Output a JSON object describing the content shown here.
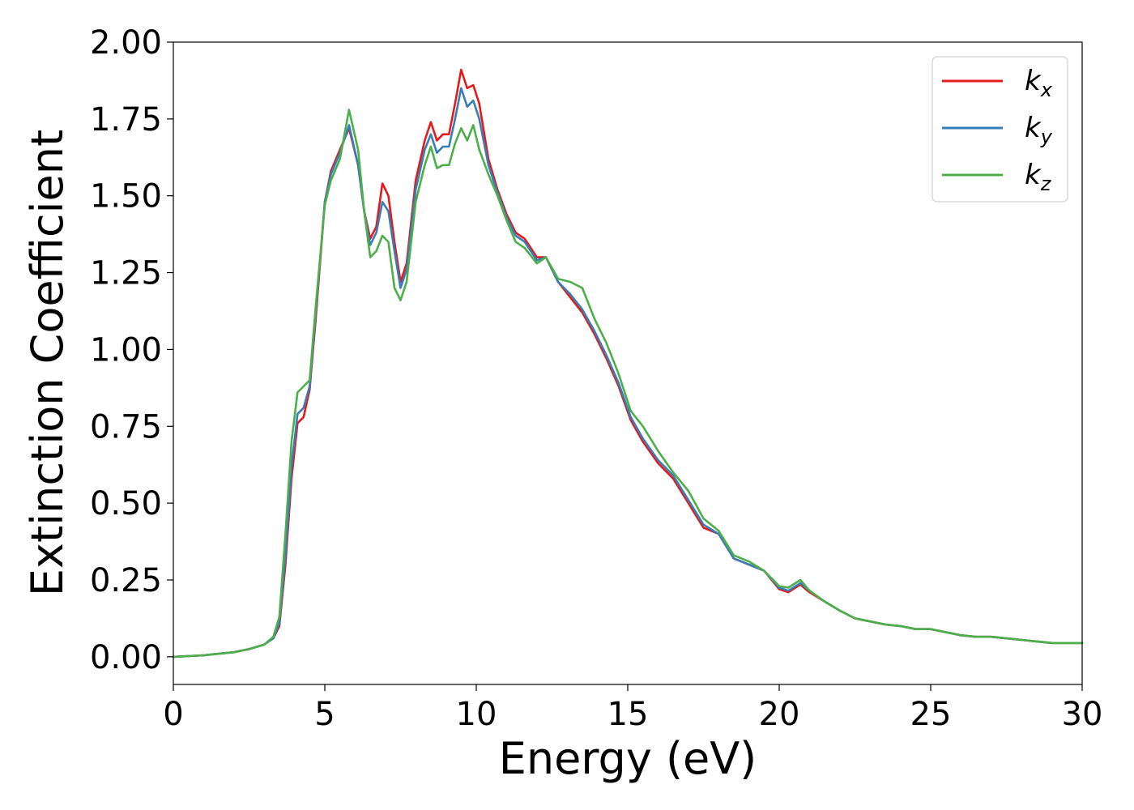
{
  "chart_data": {
    "type": "line",
    "title": "",
    "xlabel": "Energy (eV)",
    "ylabel": "Extinction Coefficient",
    "xlim": [
      0,
      30
    ],
    "ylim": [
      -0.09,
      2.0
    ],
    "xticks": [
      0,
      5,
      10,
      15,
      20,
      25,
      30
    ],
    "xtick_labels": [
      "0",
      "5",
      "10",
      "15",
      "20",
      "25",
      "30"
    ],
    "yticks": [
      0.0,
      0.25,
      0.5,
      0.75,
      1.0,
      1.25,
      1.5,
      1.75,
      2.0
    ],
    "ytick_labels": [
      "0.00",
      "0.25",
      "0.50",
      "0.75",
      "1.00",
      "1.25",
      "1.50",
      "1.75",
      "2.00"
    ],
    "grid": false,
    "legend_position": "top-right",
    "series": [
      {
        "name": "k",
        "subscript": "x",
        "color": "#e41a1c",
        "x": [
          0,
          1,
          2,
          2.5,
          3,
          3.3,
          3.5,
          3.7,
          3.9,
          4.1,
          4.3,
          4.5,
          4.7,
          5.0,
          5.2,
          5.5,
          5.8,
          6.1,
          6.3,
          6.5,
          6.7,
          6.9,
          7.1,
          7.3,
          7.5,
          7.7,
          8.0,
          8.3,
          8.5,
          8.7,
          8.9,
          9.1,
          9.3,
          9.5,
          9.7,
          9.9,
          10.1,
          10.4,
          10.7,
          11.0,
          11.3,
          11.6,
          12.0,
          12.3,
          12.7,
          13.1,
          13.5,
          13.9,
          14.3,
          14.7,
          15.1,
          15.5,
          16.0,
          16.5,
          17.0,
          17.5,
          18.0,
          18.5,
          19.0,
          19.5,
          20.0,
          20.3,
          20.7,
          21.0,
          21.5,
          22.0,
          22.5,
          23.0,
          23.5,
          24.0,
          24.5,
          25.0,
          25.5,
          26.0,
          26.5,
          27.0,
          27.5,
          28.0,
          28.5,
          29.0,
          29.5,
          30.0
        ],
        "y": [
          0.0,
          0.005,
          0.015,
          0.025,
          0.04,
          0.06,
          0.1,
          0.3,
          0.58,
          0.76,
          0.78,
          0.87,
          1.1,
          1.48,
          1.58,
          1.65,
          1.72,
          1.6,
          1.45,
          1.36,
          1.4,
          1.54,
          1.5,
          1.35,
          1.22,
          1.28,
          1.55,
          1.68,
          1.74,
          1.68,
          1.7,
          1.7,
          1.8,
          1.91,
          1.85,
          1.86,
          1.8,
          1.62,
          1.52,
          1.44,
          1.38,
          1.36,
          1.3,
          1.3,
          1.22,
          1.17,
          1.12,
          1.05,
          0.97,
          0.88,
          0.77,
          0.7,
          0.63,
          0.58,
          0.5,
          0.42,
          0.4,
          0.32,
          0.3,
          0.28,
          0.22,
          0.21,
          0.235,
          0.21,
          0.18,
          0.15,
          0.125,
          0.115,
          0.105,
          0.1,
          0.09,
          0.09,
          0.08,
          0.07,
          0.065,
          0.065,
          0.06,
          0.055,
          0.05,
          0.045,
          0.045,
          0.045
        ]
      },
      {
        "name": "k",
        "subscript": "y",
        "color": "#377eb8",
        "x": [
          0,
          1,
          2,
          2.5,
          3,
          3.3,
          3.5,
          3.7,
          3.9,
          4.1,
          4.3,
          4.5,
          4.7,
          5.0,
          5.2,
          5.5,
          5.8,
          6.1,
          6.3,
          6.5,
          6.7,
          6.9,
          7.1,
          7.3,
          7.5,
          7.7,
          8.0,
          8.3,
          8.5,
          8.7,
          8.9,
          9.1,
          9.3,
          9.5,
          9.7,
          9.9,
          10.1,
          10.4,
          10.7,
          11.0,
          11.3,
          11.6,
          12.0,
          12.3,
          12.7,
          13.1,
          13.5,
          13.9,
          14.3,
          14.7,
          15.1,
          15.5,
          16.0,
          16.5,
          17.0,
          17.5,
          18.0,
          18.5,
          19.0,
          19.5,
          20.0,
          20.3,
          20.7,
          21.0,
          21.5,
          22.0,
          22.5,
          23.0,
          23.5,
          24.0,
          24.5,
          25.0,
          25.5,
          26.0,
          26.5,
          27.0,
          27.5,
          28.0,
          28.5,
          29.0,
          29.5,
          30.0
        ],
        "y": [
          0.0,
          0.005,
          0.015,
          0.025,
          0.04,
          0.06,
          0.11,
          0.33,
          0.62,
          0.79,
          0.81,
          0.88,
          1.12,
          1.48,
          1.57,
          1.64,
          1.73,
          1.6,
          1.45,
          1.34,
          1.38,
          1.48,
          1.45,
          1.32,
          1.2,
          1.26,
          1.52,
          1.65,
          1.7,
          1.64,
          1.66,
          1.66,
          1.75,
          1.85,
          1.79,
          1.81,
          1.75,
          1.6,
          1.51,
          1.43,
          1.37,
          1.35,
          1.29,
          1.3,
          1.22,
          1.18,
          1.13,
          1.06,
          0.98,
          0.89,
          0.78,
          0.71,
          0.64,
          0.59,
          0.51,
          0.43,
          0.4,
          0.32,
          0.3,
          0.28,
          0.225,
          0.215,
          0.24,
          0.215,
          0.18,
          0.15,
          0.125,
          0.115,
          0.105,
          0.1,
          0.09,
          0.09,
          0.08,
          0.07,
          0.065,
          0.065,
          0.06,
          0.055,
          0.05,
          0.045,
          0.045,
          0.045
        ]
      },
      {
        "name": "k",
        "subscript": "z",
        "color": "#4daf4a",
        "x": [
          0,
          1,
          2,
          2.5,
          3,
          3.3,
          3.5,
          3.7,
          3.9,
          4.1,
          4.3,
          4.5,
          4.7,
          5.0,
          5.2,
          5.5,
          5.8,
          6.1,
          6.3,
          6.5,
          6.7,
          6.9,
          7.1,
          7.3,
          7.5,
          7.7,
          8.0,
          8.3,
          8.5,
          8.7,
          8.9,
          9.1,
          9.3,
          9.5,
          9.7,
          9.9,
          10.1,
          10.4,
          10.7,
          11.0,
          11.3,
          11.6,
          12.0,
          12.3,
          12.7,
          13.1,
          13.5,
          13.9,
          14.3,
          14.7,
          15.1,
          15.5,
          16.0,
          16.5,
          17.0,
          17.5,
          18.0,
          18.5,
          19.0,
          19.5,
          20.0,
          20.3,
          20.7,
          21.0,
          21.5,
          22.0,
          22.5,
          23.0,
          23.5,
          24.0,
          24.5,
          25.0,
          25.5,
          26.0,
          26.5,
          27.0,
          27.5,
          28.0,
          28.5,
          29.0,
          29.5,
          30.0
        ],
        "y": [
          0.0,
          0.005,
          0.015,
          0.025,
          0.04,
          0.065,
          0.13,
          0.4,
          0.7,
          0.86,
          0.88,
          0.9,
          1.14,
          1.47,
          1.55,
          1.62,
          1.78,
          1.65,
          1.45,
          1.3,
          1.32,
          1.37,
          1.35,
          1.2,
          1.16,
          1.22,
          1.48,
          1.6,
          1.66,
          1.59,
          1.6,
          1.6,
          1.67,
          1.72,
          1.68,
          1.73,
          1.65,
          1.57,
          1.5,
          1.42,
          1.35,
          1.33,
          1.28,
          1.3,
          1.23,
          1.22,
          1.2,
          1.1,
          1.02,
          0.92,
          0.8,
          0.75,
          0.67,
          0.6,
          0.54,
          0.45,
          0.41,
          0.33,
          0.31,
          0.28,
          0.23,
          0.225,
          0.25,
          0.215,
          0.18,
          0.15,
          0.125,
          0.115,
          0.105,
          0.1,
          0.09,
          0.09,
          0.08,
          0.07,
          0.065,
          0.065,
          0.06,
          0.055,
          0.05,
          0.045,
          0.045,
          0.045
        ]
      }
    ]
  }
}
